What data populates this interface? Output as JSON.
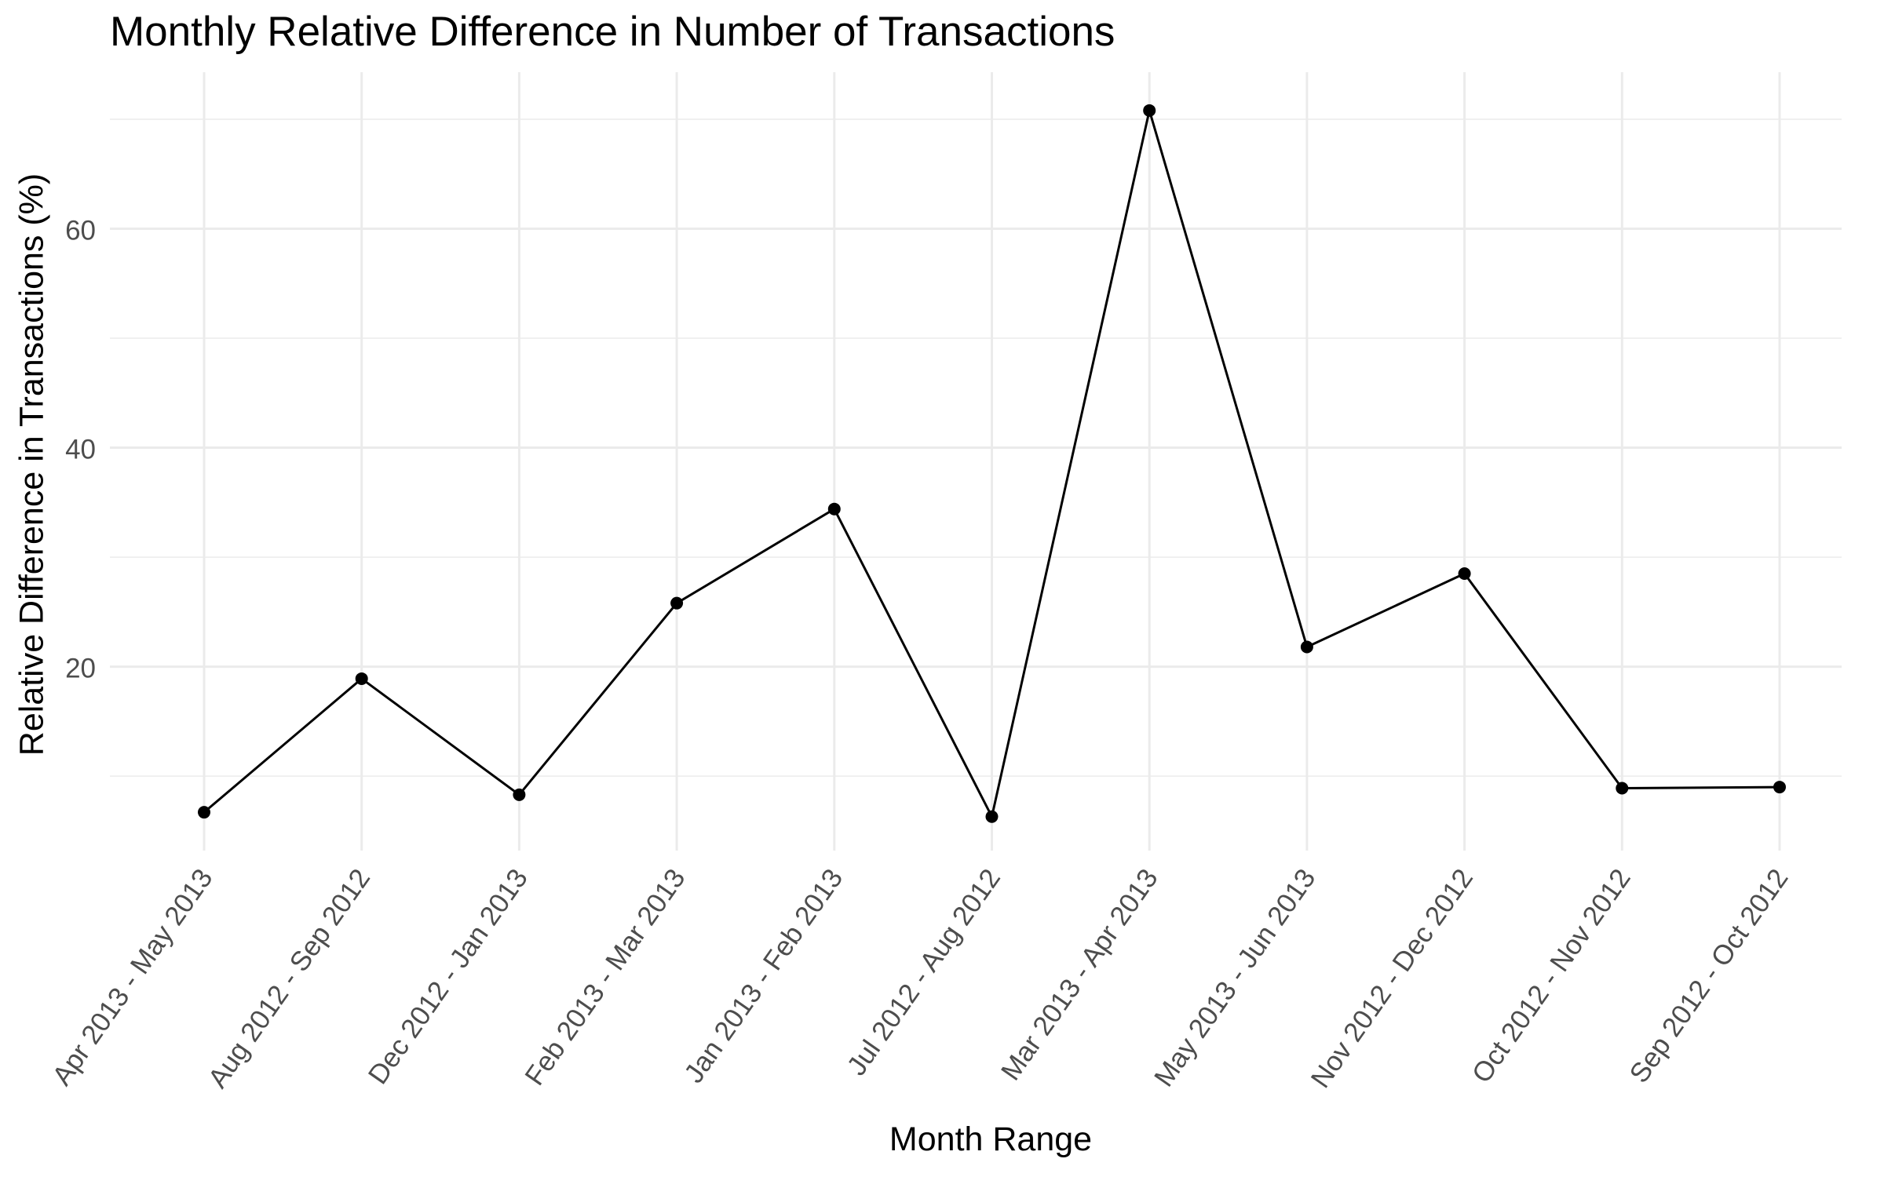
{
  "chart_data": {
    "type": "line",
    "title": "Monthly Relative Difference in Number of Transactions",
    "xlabel": "Month Range",
    "ylabel": "Relative Difference in Transactions (%)",
    "categories": [
      "Apr 2013 - May 2013",
      "Aug 2012 - Sep 2012",
      "Dec 2012 - Jan 2013",
      "Feb 2013 - Mar 2013",
      "Jan 2013 - Feb 2013",
      "Jul 2012 - Aug 2012",
      "Mar 2013 - Apr 2013",
      "May 2013 - Jun 2013",
      "Nov 2012 - Dec 2012",
      "Oct 2012 - Nov 2012",
      "Sep 2012 - Oct 2012"
    ],
    "values": [
      6.7,
      18.9,
      8.3,
      25.8,
      34.4,
      6.3,
      70.8,
      21.8,
      28.5,
      8.9,
      9.0
    ],
    "ylim": [
      3.2,
      74.3
    ],
    "yticks": [
      20,
      40,
      60
    ],
    "grid": true,
    "legend": "none",
    "colors": {
      "line": "#000000",
      "point": "#000000",
      "grid": "#ebebeb",
      "tick_label": "#4d4d4d"
    }
  }
}
